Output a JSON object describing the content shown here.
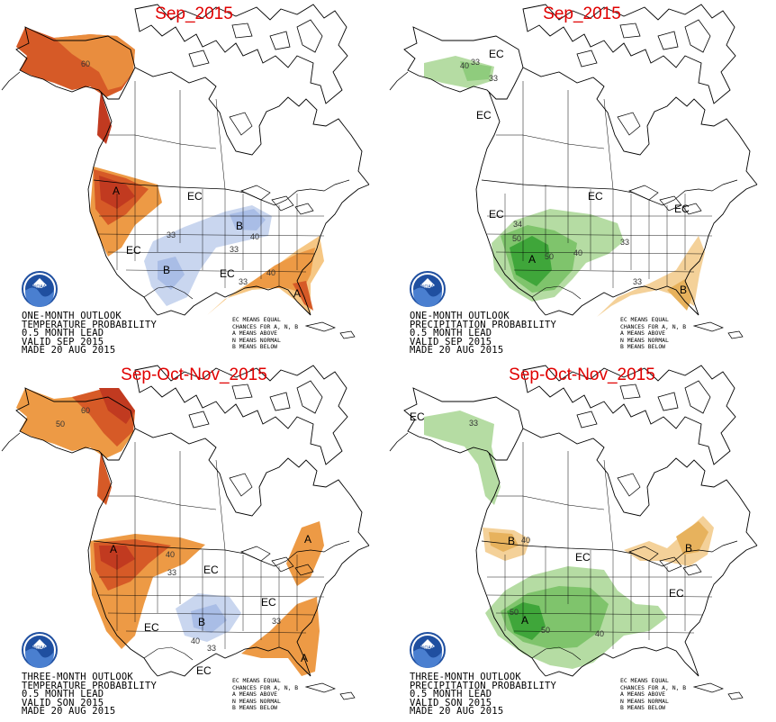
{
  "panels": [
    {
      "id": "temp-month",
      "title": "Sep_2015",
      "info_lines": [
        "ONE-MONTH OUTLOOK",
        "TEMPERATURE PROBABILITY",
        "0.5 MONTH LEAD",
        "VALID SEP 2015",
        "MADE 20 AUG 2015"
      ],
      "legend_lines": [
        "EC MEANS EQUAL",
        "CHANCES FOR A, N, B",
        "A MEANS ABOVE",
        "N MEANS NORMAL",
        "B MEANS BELOW"
      ],
      "map_labels": [
        "60",
        "A",
        "EC",
        "EC",
        "B",
        "40",
        "33",
        "33",
        "B",
        "EC",
        "33",
        "40",
        "A"
      ]
    },
    {
      "id": "precip-month",
      "title": "Sep_2015",
      "info_lines": [
        "ONE-MONTH OUTLOOK",
        "PRECIPITATION PROBABILITY",
        "0.5 MONTH LEAD",
        "VALID SEP 2015",
        "MADE 20 AUG 2015"
      ],
      "legend_lines": [
        "EC MEANS EQUAL",
        "CHANCES FOR A, N, B",
        "A MEANS ABOVE",
        "N MEANS NORMAL",
        "B MEANS BELOW"
      ],
      "map_labels": [
        "EC",
        "40",
        "33",
        "33",
        "EC",
        "EC",
        "EC",
        "EC",
        "34",
        "50",
        "A",
        "50",
        "40",
        "33",
        "33",
        "B"
      ]
    },
    {
      "id": "temp-season",
      "title": "Sep-Oct-Nov_2015",
      "info_lines": [
        "THREE-MONTH OUTLOOK",
        "TEMPERATURE PROBABILITY",
        "0.5 MONTH LEAD",
        "VALID SON 2015",
        "MADE 20 AUG 2015"
      ],
      "legend_lines": [
        "EC MEANS EQUAL",
        "CHANCES FOR A, N, B",
        "A MEANS ABOVE",
        "N MEANS NORMAL",
        "B MEANS BELOW"
      ],
      "map_labels": [
        "60",
        "50",
        "A",
        "40",
        "33",
        "EC",
        "A",
        "EC",
        "EC",
        "B",
        "40",
        "33",
        "33",
        "EC",
        "A"
      ]
    },
    {
      "id": "precip-season",
      "title": "Sep-Oct-Nov_2015",
      "info_lines": [
        "THREE-MONTH OUTLOOK",
        "PRECIPITATION PROBABILITY",
        "0.5 MONTH LEAD",
        "VALID SON 2015",
        "MADE 20 AUG 2015"
      ],
      "legend_lines": [
        "EC MEANS EQUAL",
        "CHANCES FOR A, N, B",
        "A MEANS ABOVE",
        "N MEANS NORMAL",
        "B MEANS BELOW"
      ],
      "map_labels": [
        "EC",
        "33",
        "B",
        "40",
        "EC",
        "B",
        "EC",
        "50",
        "A",
        "50",
        "40"
      ]
    }
  ],
  "colors": {
    "above_temp_light": "#f6c784",
    "above_temp_mid": "#ed9a45",
    "above_temp_dark": "#d65a27",
    "above_temp_darkest": "#c13a20",
    "below_temp_light": "#c9d6ef",
    "below_temp_mid": "#a9bde6",
    "above_precip_light": "#b5dca3",
    "above_precip_mid": "#7fc46c",
    "above_precip_dark": "#3fa63a",
    "below_precip_light": "#f4d199",
    "below_precip_mid": "#e7b25d",
    "noaa_blue": "#1f4fa0"
  },
  "icons": [
    "noaa-logo-icon"
  ]
}
